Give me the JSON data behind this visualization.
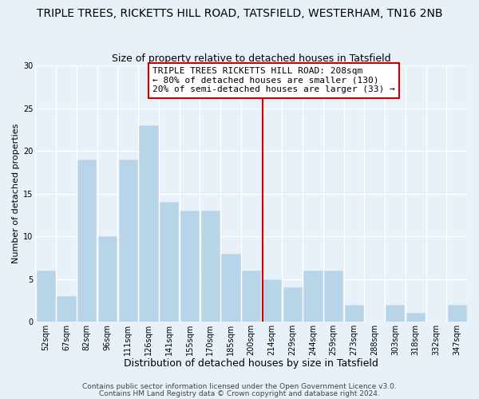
{
  "title": "TRIPLE TREES, RICKETTS HILL ROAD, TATSFIELD, WESTERHAM, TN16 2NB",
  "subtitle": "Size of property relative to detached houses in Tatsfield",
  "xlabel": "Distribution of detached houses by size in Tatsfield",
  "ylabel": "Number of detached properties",
  "footer1": "Contains HM Land Registry data © Crown copyright and database right 2024.",
  "footer2": "Contains public sector information licensed under the Open Government Licence v3.0.",
  "categories": [
    "52sqm",
    "67sqm",
    "82sqm",
    "96sqm",
    "111sqm",
    "126sqm",
    "141sqm",
    "155sqm",
    "170sqm",
    "185sqm",
    "200sqm",
    "214sqm",
    "229sqm",
    "244sqm",
    "259sqm",
    "273sqm",
    "288sqm",
    "303sqm",
    "318sqm",
    "332sqm",
    "347sqm"
  ],
  "values": [
    6,
    3,
    19,
    10,
    19,
    23,
    14,
    13,
    13,
    8,
    6,
    5,
    4,
    6,
    6,
    2,
    0,
    2,
    1,
    0,
    2
  ],
  "bar_color": "#b8d4e8",
  "bar_edge_color": "#c8dced",
  "background_color": "#e8f0f8",
  "plot_bg_color": "#e8f0f8",
  "grid_color": "#ffffff",
  "annotation_box_text": "TRIPLE TREES RICKETTS HILL ROAD: 208sqm\n← 80% of detached houses are smaller (130)\n20% of semi-detached houses are larger (33) →",
  "ylim": [
    0,
    30
  ],
  "yticks": [
    0,
    5,
    10,
    15,
    20,
    25,
    30
  ],
  "title_fontsize": 10,
  "subtitle_fontsize": 9,
  "xlabel_fontsize": 9,
  "ylabel_fontsize": 8,
  "tick_fontsize": 7,
  "annotation_fontsize": 8,
  "footer_fontsize": 6.5
}
